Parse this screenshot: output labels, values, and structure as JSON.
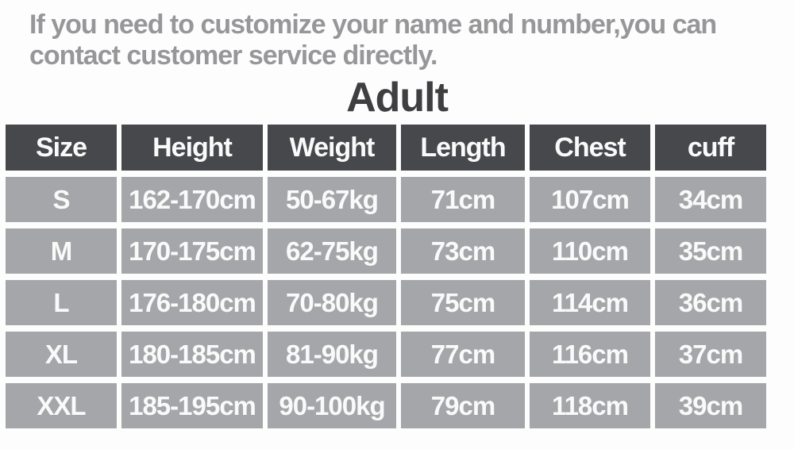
{
  "note": {
    "lines": [
      "If you need to customize your name and number,you can",
      "contact customer service directly."
    ]
  },
  "chart_data": {
    "type": "table",
    "title": "Adult",
    "columns": [
      "Size",
      "Height",
      "Weight",
      "Length",
      "Chest",
      "cuff"
    ],
    "rows": [
      [
        "S",
        "162-170cm",
        "50-67kg",
        "71cm",
        "107cm",
        "34cm"
      ],
      [
        "M",
        "170-175cm",
        "62-75kg",
        "73cm",
        "110cm",
        "35cm"
      ],
      [
        "L",
        "176-180cm",
        "70-80kg",
        "75cm",
        "114cm",
        "36cm"
      ],
      [
        "XL",
        "180-185cm",
        "81-90kg",
        "77cm",
        "116cm",
        "37cm"
      ],
      [
        "XXL",
        "185-195cm",
        "90-100kg",
        "79cm",
        "118cm",
        "39cm"
      ]
    ]
  },
  "colors": {
    "header_bg": "#47484c",
    "row_bg": "#a5a6a9",
    "note_text": "#97979a",
    "title_text": "#3f3f42",
    "cell_text": "#fafafa",
    "page_bg": "#fdfdfd"
  }
}
